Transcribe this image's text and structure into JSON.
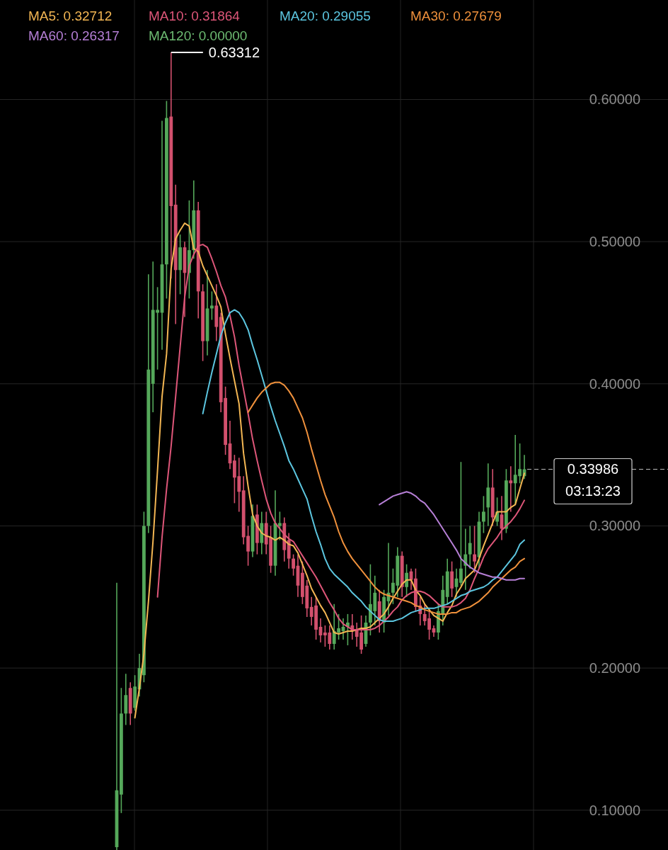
{
  "chart_data": {
    "type": "candlestick",
    "categories": [
      null,
      null,
      null,
      null,
      null,
      null,
      null,
      null,
      null,
      null,
      null,
      null,
      null,
      null,
      null,
      null,
      null,
      null,
      null,
      null,
      null,
      null,
      null,
      null,
      null,
      null,
      null,
      null,
      null,
      null,
      null,
      null,
      null,
      null,
      null,
      null,
      null,
      null,
      null,
      null,
      null,
      null,
      null,
      null,
      null,
      null,
      null,
      null,
      null,
      null,
      null,
      null,
      null,
      null,
      null,
      null,
      null,
      null,
      null,
      null,
      null,
      null,
      null,
      null,
      null,
      null,
      null,
      null,
      null,
      null,
      null,
      null,
      null,
      null,
      null,
      null,
      null,
      null,
      null,
      null,
      null,
      null,
      null,
      null,
      null,
      null,
      null,
      null,
      null,
      null,
      null
    ],
    "ohlc": [
      [
        0.074,
        0.26,
        0.072,
        0.114
      ],
      [
        0.111,
        0.186,
        0.098,
        0.168
      ],
      [
        0.168,
        0.196,
        0.16,
        0.181
      ],
      [
        0.186,
        0.19,
        0.16,
        0.168
      ],
      [
        0.172,
        0.195,
        0.17,
        0.187
      ],
      [
        0.185,
        0.21,
        0.18,
        0.2
      ],
      [
        0.195,
        0.31,
        0.19,
        0.3
      ],
      [
        0.3,
        0.477,
        0.295,
        0.41
      ],
      [
        0.4,
        0.486,
        0.38,
        0.452
      ],
      [
        0.45,
        0.468,
        0.41,
        0.452
      ],
      [
        0.45,
        0.585,
        0.424,
        0.484
      ],
      [
        0.484,
        0.599,
        0.46,
        0.587
      ],
      [
        0.588,
        0.63312,
        0.474,
        0.525
      ],
      [
        0.526,
        0.54,
        0.442,
        0.48
      ],
      [
        0.48,
        0.505,
        0.463,
        0.496
      ],
      [
        0.496,
        0.5,
        0.447,
        0.478
      ],
      [
        0.478,
        0.529,
        0.46,
        0.494
      ],
      [
        0.494,
        0.543,
        0.488,
        0.522
      ],
      [
        0.522,
        0.528,
        0.446,
        0.465
      ],
      [
        0.465,
        0.47,
        0.416,
        0.43
      ],
      [
        0.43,
        0.48,
        0.42,
        0.453
      ],
      [
        0.453,
        0.465,
        0.445,
        0.455
      ],
      [
        0.455,
        0.47,
        0.43,
        0.44
      ],
      [
        0.447,
        0.45,
        0.38,
        0.387
      ],
      [
        0.39,
        0.398,
        0.35,
        0.357
      ],
      [
        0.358,
        0.374,
        0.34,
        0.344
      ],
      [
        0.346,
        0.35,
        0.316,
        0.334
      ],
      [
        0.335,
        0.348,
        0.31,
        0.324
      ],
      [
        0.325,
        0.335,
        0.287,
        0.292
      ],
      [
        0.293,
        0.3,
        0.272,
        0.282
      ],
      [
        0.282,
        0.315,
        0.278,
        0.307
      ],
      [
        0.308,
        0.315,
        0.28,
        0.288
      ],
      [
        0.288,
        0.31,
        0.28,
        0.302
      ],
      [
        0.302,
        0.31,
        0.28,
        0.287
      ],
      [
        0.292,
        0.3,
        0.267,
        0.272
      ],
      [
        0.272,
        0.325,
        0.265,
        0.302
      ],
      [
        0.3,
        0.31,
        0.29,
        0.302
      ],
      [
        0.302,
        0.306,
        0.275,
        0.283
      ],
      [
        0.29,
        0.295,
        0.27,
        0.277
      ],
      [
        0.277,
        0.28,
        0.265,
        0.27
      ],
      [
        0.272,
        0.28,
        0.25,
        0.258
      ],
      [
        0.267,
        0.275,
        0.245,
        0.25
      ],
      [
        0.258,
        0.262,
        0.236,
        0.242
      ],
      [
        0.243,
        0.25,
        0.23,
        0.236
      ],
      [
        0.244,
        0.25,
        0.22,
        0.227
      ],
      [
        0.229,
        0.235,
        0.218,
        0.223
      ],
      [
        0.225,
        0.23,
        0.215,
        0.223
      ],
      [
        0.225,
        0.23,
        0.213,
        0.217
      ],
      [
        0.217,
        0.245,
        0.213,
        0.226
      ],
      [
        0.225,
        0.238,
        0.22,
        0.228
      ],
      [
        0.226,
        0.235,
        0.22,
        0.229
      ],
      [
        0.229,
        0.238,
        0.216,
        0.232
      ],
      [
        0.23,
        0.238,
        0.22,
        0.226
      ],
      [
        0.227,
        0.232,
        0.215,
        0.222
      ],
      [
        0.225,
        0.237,
        0.21,
        0.213
      ],
      [
        0.217,
        0.237,
        0.215,
        0.232
      ],
      [
        0.232,
        0.273,
        0.223,
        0.245
      ],
      [
        0.24,
        0.265,
        0.23,
        0.253
      ],
      [
        0.247,
        0.255,
        0.225,
        0.233
      ],
      [
        0.232,
        0.255,
        0.225,
        0.25
      ],
      [
        0.247,
        0.288,
        0.237,
        0.253
      ],
      [
        0.253,
        0.27,
        0.245,
        0.26
      ],
      [
        0.258,
        0.285,
        0.25,
        0.279
      ],
      [
        0.279,
        0.282,
        0.25,
        0.257
      ],
      [
        0.257,
        0.273,
        0.25,
        0.267
      ],
      [
        0.268,
        0.27,
        0.255,
        0.262
      ],
      [
        0.263,
        0.27,
        0.24,
        0.243
      ],
      [
        0.244,
        0.25,
        0.23,
        0.238
      ],
      [
        0.238,
        0.245,
        0.23,
        0.233
      ],
      [
        0.235,
        0.24,
        0.22,
        0.227
      ],
      [
        0.228,
        0.23,
        0.222,
        0.225
      ],
      [
        0.225,
        0.245,
        0.22,
        0.24
      ],
      [
        0.238,
        0.265,
        0.23,
        0.255
      ],
      [
        0.25,
        0.277,
        0.245,
        0.268
      ],
      [
        0.268,
        0.275,
        0.25,
        0.256
      ],
      [
        0.257,
        0.27,
        0.25,
        0.263
      ],
      [
        0.26,
        0.345,
        0.258,
        0.27
      ],
      [
        0.272,
        0.298,
        0.255,
        0.28
      ],
      [
        0.28,
        0.3,
        0.27,
        0.288
      ],
      [
        0.28,
        0.3,
        0.267,
        0.275
      ],
      [
        0.278,
        0.31,
        0.27,
        0.303
      ],
      [
        0.303,
        0.321,
        0.295,
        0.31
      ],
      [
        0.313,
        0.344,
        0.3,
        0.327
      ],
      [
        0.327,
        0.34,
        0.3,
        0.306
      ],
      [
        0.303,
        0.32,
        0.3,
        0.31
      ],
      [
        0.308,
        0.321,
        0.29,
        0.298
      ],
      [
        0.298,
        0.34,
        0.295,
        0.332
      ],
      [
        0.332,
        0.342,
        0.31,
        0.33
      ],
      [
        0.33,
        0.364,
        0.315,
        0.336
      ],
      [
        0.335,
        0.358,
        0.33,
        0.34
      ],
      [
        0.335,
        0.35,
        0.333,
        0.33986
      ]
    ],
    "series": [
      {
        "type": "line",
        "name": "MA5: 0.32712",
        "color": "#f3b653",
        "values": [
          null,
          null,
          null,
          null,
          0.165,
          0.186,
          0.21,
          0.247,
          0.289,
          0.339,
          0.391,
          0.421,
          0.481,
          0.502,
          0.508,
          0.513,
          0.511,
          0.495,
          0.493,
          0.483,
          0.476,
          0.469,
          0.462,
          0.454,
          0.435,
          0.418,
          0.402,
          0.386,
          0.351,
          0.328,
          0.308,
          0.3,
          0.295,
          0.293,
          0.292,
          0.29,
          0.292,
          0.29,
          0.287,
          0.286,
          0.281,
          0.273,
          0.265,
          0.256,
          0.25,
          0.244,
          0.239,
          0.232,
          0.225,
          0.224,
          0.225,
          0.226,
          0.226,
          0.227,
          0.228,
          0.228,
          0.229,
          0.232,
          0.235,
          0.238,
          0.243,
          0.249,
          0.254,
          0.259,
          0.262,
          0.262,
          0.255,
          0.251,
          0.245,
          0.241,
          0.237,
          0.235,
          0.233,
          0.239,
          0.244,
          0.252,
          0.257,
          0.263,
          0.266,
          0.269,
          0.277,
          0.286,
          0.294,
          0.302,
          0.31,
          0.31,
          0.31,
          0.313,
          0.315,
          0.326,
          0.337
        ]
      },
      {
        "type": "line",
        "name": "MA10: 0.31864",
        "color": "#de5679",
        "values": [
          null,
          null,
          null,
          null,
          null,
          null,
          null,
          null,
          null,
          0.25,
          0.292,
          0.326,
          0.356,
          0.391,
          0.426,
          0.461,
          0.483,
          0.491,
          0.497,
          0.498,
          0.496,
          0.488,
          0.479,
          0.469,
          0.461,
          0.448,
          0.433,
          0.413,
          0.396,
          0.379,
          0.361,
          0.346,
          0.332,
          0.319,
          0.309,
          0.302,
          0.298,
          0.294,
          0.291,
          0.289,
          0.284,
          0.279,
          0.274,
          0.269,
          0.264,
          0.258,
          0.252,
          0.246,
          0.241,
          0.235,
          0.231,
          0.229,
          0.227,
          0.227,
          0.227,
          0.227,
          0.227,
          0.228,
          0.23,
          0.233,
          0.236,
          0.24,
          0.243,
          0.248,
          0.251,
          0.253,
          0.254,
          0.254,
          0.253,
          0.251,
          0.248,
          0.245,
          0.243,
          0.243,
          0.243,
          0.244,
          0.246,
          0.249,
          0.255,
          0.263,
          0.27,
          0.278,
          0.284,
          0.288,
          0.292,
          0.297,
          0.3,
          0.303,
          0.307,
          0.312,
          0.318
        ]
      },
      {
        "type": "line",
        "name": "MA20: 0.29055",
        "color": "#5cc6e0",
        "values": [
          null,
          null,
          null,
          null,
          null,
          null,
          null,
          null,
          null,
          null,
          null,
          null,
          null,
          null,
          null,
          null,
          null,
          null,
          null,
          0.379,
          0.394,
          0.408,
          0.421,
          0.434,
          0.443,
          0.45,
          0.452,
          0.45,
          0.445,
          0.438,
          0.427,
          0.417,
          0.406,
          0.395,
          0.384,
          0.374,
          0.365,
          0.356,
          0.346,
          0.34,
          0.333,
          0.326,
          0.319,
          0.307,
          0.296,
          0.287,
          0.277,
          0.27,
          0.266,
          0.263,
          0.26,
          0.257,
          0.253,
          0.25,
          0.247,
          0.243,
          0.24,
          0.237,
          0.234,
          0.233,
          0.233,
          0.233,
          0.234,
          0.235,
          0.237,
          0.239,
          0.24,
          0.241,
          0.242,
          0.242,
          0.242,
          0.243,
          0.244,
          0.245,
          0.247,
          0.249,
          0.251,
          0.252,
          0.254,
          0.255,
          0.256,
          0.257,
          0.259,
          0.262,
          0.264,
          0.268,
          0.272,
          0.276,
          0.28,
          0.287,
          0.29
        ]
      },
      {
        "type": "line",
        "name": "MA30: 0.27679",
        "color": "#f0913c",
        "values": [
          null,
          null,
          null,
          null,
          null,
          null,
          null,
          null,
          null,
          null,
          null,
          null,
          null,
          null,
          null,
          null,
          null,
          null,
          null,
          null,
          null,
          null,
          null,
          null,
          null,
          null,
          null,
          null,
          null,
          0.38,
          0.385,
          0.39,
          0.394,
          0.397,
          0.4,
          0.401,
          0.401,
          0.399,
          0.395,
          0.39,
          0.383,
          0.376,
          0.366,
          0.354,
          0.343,
          0.332,
          0.322,
          0.314,
          0.306,
          0.296,
          0.288,
          0.282,
          0.277,
          0.273,
          0.269,
          0.265,
          0.261,
          0.257,
          0.254,
          0.252,
          0.251,
          0.25,
          0.249,
          0.248,
          0.247,
          0.246,
          0.244,
          0.243,
          0.241,
          0.24,
          0.239,
          0.238,
          0.238,
          0.238,
          0.239,
          0.239,
          0.241,
          0.242,
          0.243,
          0.245,
          0.247,
          0.25,
          0.253,
          0.257,
          0.26,
          0.263,
          0.266,
          0.269,
          0.271,
          0.275,
          0.277
        ]
      },
      {
        "type": "line",
        "name": "MA60: 0.26317",
        "color": "#b67fd6",
        "values": [
          null,
          null,
          null,
          null,
          null,
          null,
          null,
          null,
          null,
          null,
          null,
          null,
          null,
          null,
          null,
          null,
          null,
          null,
          null,
          null,
          null,
          null,
          null,
          null,
          null,
          null,
          null,
          null,
          null,
          null,
          null,
          null,
          null,
          null,
          null,
          null,
          null,
          null,
          null,
          null,
          null,
          null,
          null,
          null,
          null,
          null,
          null,
          null,
          null,
          null,
          null,
          null,
          null,
          null,
          null,
          null,
          null,
          null,
          0.315,
          0.317,
          0.319,
          0.321,
          0.322,
          0.323,
          0.324,
          0.323,
          0.321,
          0.318,
          0.316,
          0.312,
          0.308,
          0.303,
          0.298,
          0.293,
          0.288,
          0.283,
          0.277,
          0.274,
          0.271,
          0.269,
          0.267,
          0.266,
          0.265,
          0.264,
          0.264,
          0.263,
          0.262,
          0.262,
          0.262,
          0.263,
          0.263
        ]
      },
      {
        "type": "line",
        "name": "MA120: 0.00000",
        "color": "#6dbb72",
        "values": [
          null,
          null,
          null,
          null,
          null,
          null,
          null,
          null,
          null,
          null,
          null,
          null,
          null,
          null,
          null,
          null,
          null,
          null,
          null,
          null,
          null,
          null,
          null,
          null,
          null,
          null,
          null,
          null,
          null,
          null,
          null,
          null,
          null,
          null,
          null,
          null,
          null,
          null,
          null,
          null,
          null,
          null,
          null,
          null,
          null,
          null,
          null,
          null,
          null,
          null,
          null,
          null,
          null,
          null,
          null,
          null,
          null,
          null,
          null,
          null,
          null,
          null,
          null,
          null,
          null,
          null,
          null,
          null,
          null,
          null,
          null,
          null,
          null,
          null,
          null,
          null,
          null,
          null,
          null,
          null,
          null,
          null,
          null,
          null,
          null,
          null,
          null,
          null,
          null,
          null,
          null
        ]
      }
    ],
    "ylim": [
      0.072,
      0.67
    ],
    "yticks": [
      {
        "value": 0.1,
        "label": "0.10000"
      },
      {
        "value": 0.2,
        "label": "0.20000"
      },
      {
        "value": 0.3,
        "label": "0.30000"
      },
      {
        "value": 0.4,
        "label": "0.40000"
      },
      {
        "value": 0.5,
        "label": "0.50000"
      },
      {
        "value": 0.6,
        "label": "0.60000"
      }
    ],
    "tick_labels": "y",
    "grid": "y",
    "legend": "top left",
    "ref_lines": [
      {
        "axis": "y",
        "value": 0.33986,
        "label": "0.33986",
        "line_style": "dashed",
        "color": "#bbbbbb"
      }
    ],
    "annotations": [
      "0.63312",
      "03:13:23"
    ]
  }
}
